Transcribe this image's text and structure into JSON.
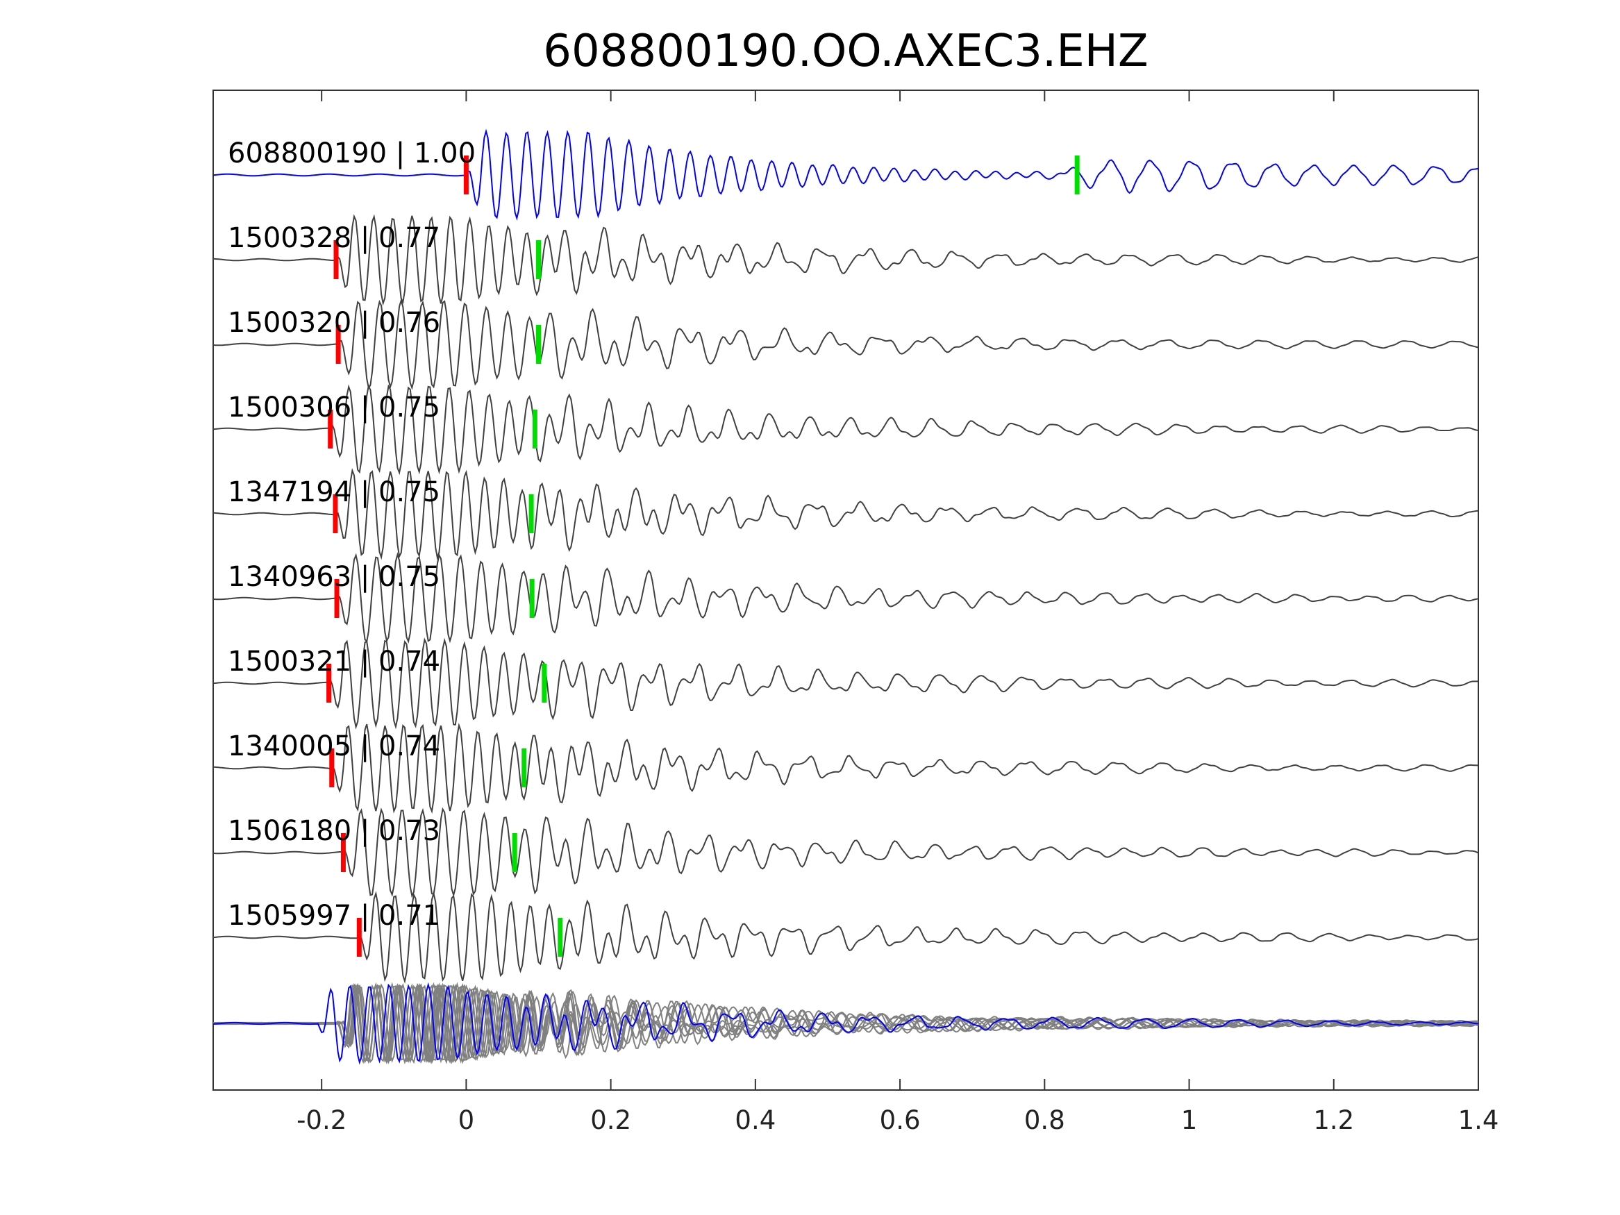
{
  "chart_data": {
    "type": "line",
    "title": "608800190.OO.AXEC3.EHZ",
    "xlabel": "",
    "ylabel": "",
    "xlim": [
      -0.35,
      1.4
    ],
    "x_ticks": [
      -0.2,
      0,
      0.2,
      0.4,
      0.6,
      0.8,
      1,
      1.2,
      1.4
    ],
    "x_tick_labels": [
      "-0.2",
      "0",
      "0.2",
      "0.4",
      "0.6",
      "0.8",
      "1",
      "1.2",
      "1.4"
    ],
    "grid": false,
    "colors": {
      "template": "#0000ff",
      "trace": "#404040",
      "stack": "#808080",
      "pick_p": "#ff0000",
      "pick_s": "#00dd00"
    },
    "traces": [
      {
        "label": "608800190 | 1.00",
        "p_pick": 0.0,
        "s_pick": 0.845,
        "template": true
      },
      {
        "label": "1500328 | 0.77",
        "p_pick": -0.18,
        "s_pick": 0.1
      },
      {
        "label": "1500320 | 0.76",
        "p_pick": -0.177,
        "s_pick": 0.1
      },
      {
        "label": "1500306 | 0.75",
        "p_pick": -0.188,
        "s_pick": 0.095
      },
      {
        "label": "1347194 | 0.75",
        "p_pick": -0.181,
        "s_pick": 0.09
      },
      {
        "label": "1340963 | 0.75",
        "p_pick": -0.179,
        "s_pick": 0.091
      },
      {
        "label": "1500321 | 0.74",
        "p_pick": -0.19,
        "s_pick": 0.108
      },
      {
        "label": "1340005 | 0.74",
        "p_pick": -0.186,
        "s_pick": 0.08
      },
      {
        "label": "1506180 | 0.73",
        "p_pick": -0.17,
        "s_pick": 0.067
      },
      {
        "label": "1505997 | 0.71",
        "p_pick": -0.148,
        "s_pick": 0.13
      }
    ]
  }
}
